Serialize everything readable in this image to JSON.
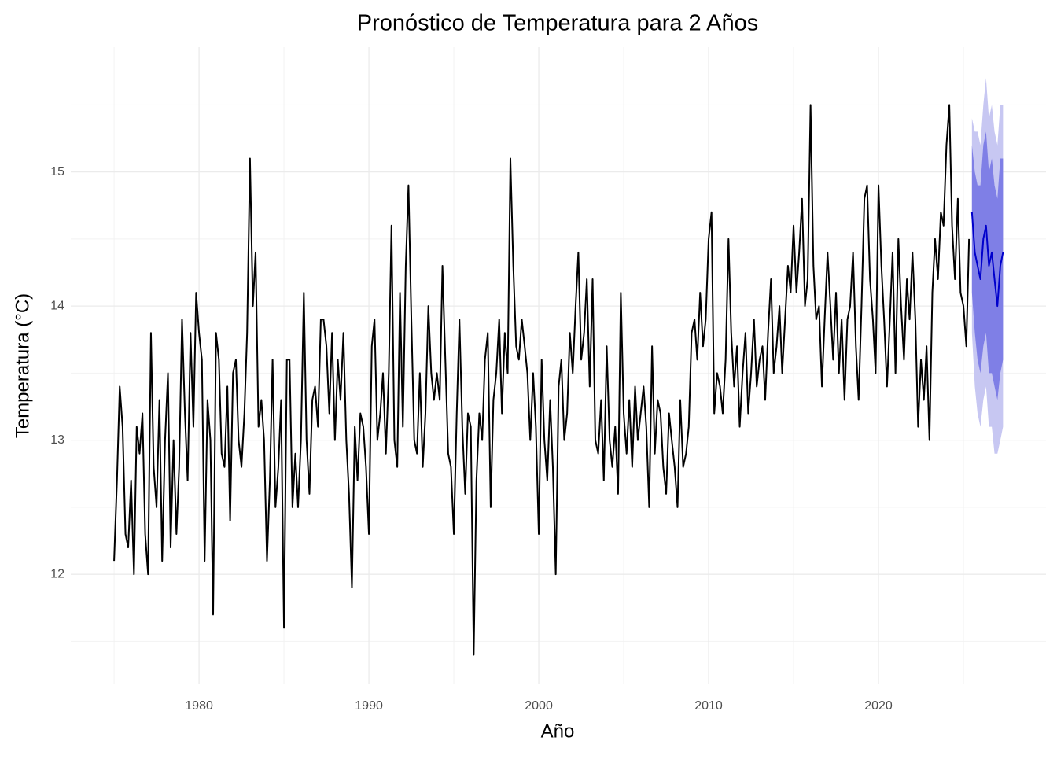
{
  "chart_data": {
    "type": "line",
    "title": "Pronóstico de Temperatura para 2 Años",
    "x_label": "Año",
    "y_label": "Temperatura (°C)",
    "xlim": [
      1972.45,
      2029.86
    ],
    "xticks": [
      1980,
      1990,
      2000,
      2010,
      2020
    ],
    "ylim": [
      11.18,
      15.93
    ],
    "yticks": [
      12,
      13,
      14,
      15
    ],
    "grid": true,
    "series": [
      {
        "color": "#000000",
        "x": [
          1975,
          1975.17,
          1975.33,
          1975.5,
          1975.67,
          1975.83,
          1976,
          1976.17,
          1976.33,
          1976.5,
          1976.67,
          1976.83,
          1977,
          1977.17,
          1977.33,
          1977.5,
          1977.67,
          1977.83,
          1978,
          1978.17,
          1978.33,
          1978.5,
          1978.67,
          1978.83,
          1979,
          1979.17,
          1979.33,
          1979.5,
          1979.67,
          1979.83,
          1980,
          1980.17,
          1980.33,
          1980.5,
          1980.67,
          1980.83,
          1981,
          1981.17,
          1981.33,
          1981.5,
          1981.67,
          1981.83,
          1982,
          1982.17,
          1982.33,
          1982.5,
          1982.67,
          1982.83,
          1983,
          1983.17,
          1983.33,
          1983.5,
          1983.67,
          1983.83,
          1984,
          1984.17,
          1984.33,
          1984.5,
          1984.67,
          1984.83,
          1985,
          1985.17,
          1985.33,
          1985.5,
          1985.67,
          1985.83,
          1986,
          1986.17,
          1986.33,
          1986.5,
          1986.67,
          1986.83,
          1987,
          1987.17,
          1987.33,
          1987.5,
          1987.67,
          1987.83,
          1988,
          1988.17,
          1988.33,
          1988.5,
          1988.67,
          1988.83,
          1989,
          1989.17,
          1989.33,
          1989.5,
          1989.67,
          1989.83,
          1990,
          1990.17,
          1990.33,
          1990.5,
          1990.67,
          1990.83,
          1991,
          1991.17,
          1991.33,
          1991.5,
          1991.67,
          1991.83,
          1992,
          1992.17,
          1992.33,
          1992.5,
          1992.67,
          1992.83,
          1993,
          1993.17,
          1993.33,
          1993.5,
          1993.67,
          1993.83,
          1994,
          1994.17,
          1994.33,
          1994.5,
          1994.67,
          1994.83,
          1995,
          1995.17,
          1995.33,
          1995.5,
          1995.67,
          1995.83,
          1996,
          1996.17,
          1996.33,
          1996.5,
          1996.67,
          1996.83,
          1997,
          1997.17,
          1997.33,
          1997.5,
          1997.67,
          1997.83,
          1998,
          1998.17,
          1998.33,
          1998.5,
          1998.67,
          1998.83,
          1999,
          1999.17,
          1999.33,
          1999.5,
          1999.67,
          1999.83,
          2000,
          2000.17,
          2000.33,
          2000.5,
          2000.67,
          2000.83,
          2001,
          2001.17,
          2001.33,
          2001.5,
          2001.67,
          2001.83,
          2002,
          2002.17,
          2002.33,
          2002.5,
          2002.67,
          2002.83,
          2003,
          2003.17,
          2003.33,
          2003.5,
          2003.67,
          2003.83,
          2004,
          2004.17,
          2004.33,
          2004.5,
          2004.67,
          2004.83,
          2005,
          2005.17,
          2005.33,
          2005.5,
          2005.67,
          2005.83,
          2006,
          2006.17,
          2006.33,
          2006.5,
          2006.67,
          2006.83,
          2007,
          2007.17,
          2007.33,
          2007.5,
          2007.67,
          2007.83,
          2008,
          2008.17,
          2008.33,
          2008.5,
          2008.67,
          2008.83,
          2009,
          2009.17,
          2009.33,
          2009.5,
          2009.67,
          2009.83,
          2010,
          2010.17,
          2010.33,
          2010.5,
          2010.67,
          2010.83,
          2011,
          2011.17,
          2011.33,
          2011.5,
          2011.67,
          2011.83,
          2012,
          2012.17,
          2012.33,
          2012.5,
          2012.67,
          2012.83,
          2013,
          2013.17,
          2013.33,
          2013.5,
          2013.67,
          2013.83,
          2014,
          2014.17,
          2014.33,
          2014.5,
          2014.67,
          2014.83,
          2015,
          2015.17,
          2015.33,
          2015.5,
          2015.67,
          2015.83,
          2016,
          2016.17,
          2016.33,
          2016.5,
          2016.67,
          2016.83,
          2017,
          2017.17,
          2017.33,
          2017.5,
          2017.67,
          2017.83,
          2018,
          2018.17,
          2018.33,
          2018.5,
          2018.67,
          2018.83,
          2019,
          2019.17,
          2019.33,
          2019.5,
          2019.67,
          2019.83,
          2020,
          2020.17,
          2020.33,
          2020.5,
          2020.67,
          2020.83,
          2021,
          2021.17,
          2021.33,
          2021.5,
          2021.67,
          2021.83,
          2022,
          2022.17,
          2022.33,
          2022.5,
          2022.67,
          2022.83,
          2023,
          2023.17,
          2023.33,
          2023.5,
          2023.67,
          2023.83,
          2024,
          2024.17,
          2024.33,
          2024.5,
          2024.67,
          2024.83,
          2025,
          2025.17,
          2025.33
        ],
        "values": [
          12.1,
          12.7,
          13.4,
          13.1,
          12.3,
          12.2,
          12.7,
          12.0,
          13.1,
          12.9,
          13.2,
          12.3,
          12.0,
          13.8,
          12.8,
          12.5,
          13.3,
          12.1,
          13.0,
          13.5,
          12.2,
          13.0,
          12.3,
          12.8,
          13.9,
          13.2,
          12.7,
          13.8,
          13.1,
          14.1,
          13.8,
          13.6,
          12.1,
          13.3,
          13.0,
          11.7,
          13.8,
          13.6,
          12.9,
          12.8,
          13.4,
          12.4,
          13.5,
          13.6,
          13.0,
          12.8,
          13.2,
          13.8,
          15.1,
          14.0,
          14.4,
          13.1,
          13.3,
          13.0,
          12.1,
          12.7,
          13.6,
          12.5,
          12.8,
          13.3,
          11.6,
          13.6,
          13.6,
          12.5,
          12.9,
          12.5,
          13.0,
          14.1,
          13.0,
          12.6,
          13.3,
          13.4,
          13.1,
          13.9,
          13.9,
          13.7,
          13.2,
          13.8,
          13.0,
          13.6,
          13.3,
          13.8,
          13.0,
          12.6,
          11.9,
          13.1,
          12.7,
          13.2,
          13.1,
          12.8,
          12.3,
          13.7,
          13.9,
          13.0,
          13.2,
          13.5,
          12.9,
          13.5,
          14.6,
          13.0,
          12.8,
          14.1,
          13.1,
          14.3,
          14.9,
          13.9,
          13.0,
          12.9,
          13.5,
          12.8,
          13.2,
          14.0,
          13.5,
          13.3,
          13.5,
          13.3,
          14.3,
          13.6,
          12.9,
          12.8,
          12.3,
          13.2,
          13.9,
          13.1,
          12.6,
          13.2,
          13.1,
          11.4,
          12.7,
          13.2,
          13.0,
          13.6,
          13.8,
          12.5,
          13.3,
          13.5,
          13.9,
          13.2,
          13.8,
          13.5,
          15.1,
          14.3,
          13.7,
          13.6,
          13.9,
          13.7,
          13.5,
          13.0,
          13.5,
          13.1,
          12.3,
          13.6,
          13.0,
          12.7,
          13.3,
          12.8,
          12.0,
          13.4,
          13.6,
          13.0,
          13.2,
          13.8,
          13.5,
          14.0,
          14.4,
          13.6,
          13.8,
          14.2,
          13.4,
          14.2,
          13.0,
          12.9,
          13.3,
          12.7,
          13.7,
          13.0,
          12.8,
          13.1,
          12.6,
          14.1,
          13.2,
          12.9,
          13.3,
          12.8,
          13.4,
          13.0,
          13.2,
          13.4,
          13.1,
          12.5,
          13.7,
          12.9,
          13.3,
          13.2,
          12.8,
          12.6,
          13.2,
          13.0,
          12.8,
          12.5,
          13.3,
          12.8,
          12.9,
          13.1,
          13.8,
          13.9,
          13.6,
          14.1,
          13.7,
          13.9,
          14.5,
          14.7,
          13.2,
          13.5,
          13.4,
          13.2,
          13.6,
          14.5,
          13.8,
          13.4,
          13.7,
          13.1,
          13.5,
          13.8,
          13.2,
          13.5,
          13.9,
          13.4,
          13.6,
          13.7,
          13.3,
          13.8,
          14.2,
          13.5,
          13.7,
          14.0,
          13.5,
          13.9,
          14.3,
          14.1,
          14.6,
          14.1,
          14.4,
          14.8,
          14.0,
          14.2,
          15.5,
          14.3,
          13.9,
          14.0,
          13.4,
          13.9,
          14.4,
          14.0,
          13.6,
          14.1,
          13.5,
          13.9,
          13.3,
          13.9,
          14.0,
          14.4,
          13.7,
          13.3,
          14.0,
          14.8,
          14.9,
          14.2,
          13.9,
          13.5,
          14.9,
          14.3,
          13.9,
          13.4,
          13.9,
          14.4,
          13.5,
          14.5,
          14.0,
          13.6,
          14.2,
          13.9,
          14.4,
          13.9,
          13.1,
          13.6,
          13.3,
          13.7,
          13.0,
          14.1,
          14.5,
          14.2,
          14.7,
          14.6,
          15.2,
          15.5,
          14.6,
          14.2,
          14.8,
          14.1,
          14.0,
          13.7,
          14.5
        ]
      },
      {
        "color": "#0000cc",
        "x": [
          2025.5,
          2025.67,
          2025.83,
          2026,
          2026.17,
          2026.33,
          2026.5,
          2026.67,
          2026.83,
          2027,
          2027.17,
          2027.33
        ],
        "values": [
          14.7,
          14.4,
          14.3,
          14.2,
          14.5,
          14.6,
          14.3,
          14.4,
          14.2,
          14.0,
          14.3,
          14.4
        ],
        "bands": [
          {
            "color": "#c7c7f2",
            "lower": [
              13.8,
              13.4,
              13.2,
              13.1,
              13.3,
              13.4,
              13.1,
              13.1,
              12.9,
              12.9,
              13.0,
              13.1
            ],
            "upper": [
              15.4,
              15.3,
              15.3,
              15.2,
              15.5,
              15.7,
              15.4,
              15.5,
              15.3,
              15.2,
              15.5,
              15.5
            ]
          },
          {
            "color": "#7f7fe6",
            "lower": [
              14.1,
              13.8,
              13.6,
              13.5,
              13.7,
              13.8,
              13.5,
              13.5,
              13.4,
              13.3,
              13.5,
              13.6
            ],
            "upper": [
              15.2,
              15.0,
              14.9,
              14.9,
              15.2,
              15.3,
              15.0,
              15.1,
              14.9,
              14.8,
              15.1,
              15.1
            ]
          }
        ]
      }
    ]
  }
}
